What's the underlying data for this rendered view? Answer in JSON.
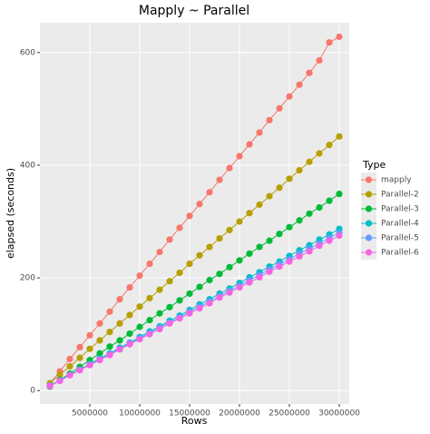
{
  "chart_data": {
    "type": "line",
    "title": "Mapply  ~ Parallel",
    "x_label": "Rows",
    "y_label": "elapsed (seconds)",
    "legend_title": "Type",
    "legend": "right",
    "grid": true,
    "x": [
      1000000,
      2000000,
      3000000,
      4000000,
      5000000,
      6000000,
      7000000,
      8000000,
      9000000,
      10000000,
      11000000,
      12000000,
      13000000,
      14000000,
      15000000,
      16000000,
      17000000,
      18000000,
      19000000,
      20000000,
      21000000,
      22000000,
      23000000,
      24000000,
      25000000,
      26000000,
      27000000,
      28000000,
      29000000,
      30000000
    ],
    "xlim": [
      0,
      31000000
    ],
    "xticks": [
      5000000,
      10000000,
      15000000,
      20000000,
      25000000,
      30000000
    ],
    "ylim": [
      -24,
      653
    ],
    "yticks": [
      0,
      200,
      400,
      600
    ],
    "series": [
      {
        "name": "mapply",
        "color": "#F8766D",
        "values": [
          13,
          34,
          56,
          77,
          98,
          119,
          140,
          162,
          183,
          204,
          225,
          246,
          268,
          289,
          310,
          331,
          352,
          374,
          395,
          416,
          437,
          458,
          480,
          501,
          522,
          543,
          564,
          586,
          618,
          628
        ]
      },
      {
        "name": "Parallel-2",
        "color": "#B79F00",
        "values": [
          13,
          28,
          43,
          58,
          74,
          89,
          104,
          119,
          134,
          149,
          164,
          179,
          194,
          209,
          225,
          240,
          255,
          270,
          285,
          300,
          315,
          330,
          345,
          360,
          376,
          391,
          406,
          421,
          436,
          451
        ]
      },
      {
        "name": "Parallel-3",
        "color": "#00BA38",
        "values": [
          7,
          19,
          30,
          42,
          54,
          66,
          78,
          89,
          101,
          113,
          125,
          137,
          148,
          160,
          172,
          184,
          196,
          207,
          219,
          231,
          243,
          255,
          266,
          278,
          290,
          302,
          314,
          325,
          337,
          349
        ]
      },
      {
        "name": "Parallel-4",
        "color": "#00BFC4",
        "values": [
          9,
          18,
          28,
          37,
          47,
          57,
          66,
          76,
          85,
          95,
          105,
          114,
          124,
          133,
          143,
          153,
          162,
          172,
          181,
          191,
          201,
          210,
          220,
          229,
          239,
          249,
          258,
          268,
          277,
          287
        ]
      },
      {
        "name": "Parallel-5",
        "color": "#619CFF",
        "values": [
          9,
          18,
          28,
          37,
          46,
          56,
          65,
          74,
          84,
          93,
          102,
          112,
          121,
          130,
          140,
          149,
          158,
          168,
          177,
          186,
          196,
          205,
          215,
          224,
          233,
          243,
          252,
          261,
          271,
          280
        ]
      },
      {
        "name": "Parallel-6",
        "color": "#F564E3",
        "values": [
          8,
          17,
          27,
          36,
          45,
          54,
          63,
          73,
          82,
          91,
          100,
          109,
          119,
          128,
          137,
          146,
          155,
          165,
          174,
          183,
          192,
          201,
          211,
          220,
          229,
          238,
          247,
          257,
          266,
          275
        ]
      }
    ]
  }
}
